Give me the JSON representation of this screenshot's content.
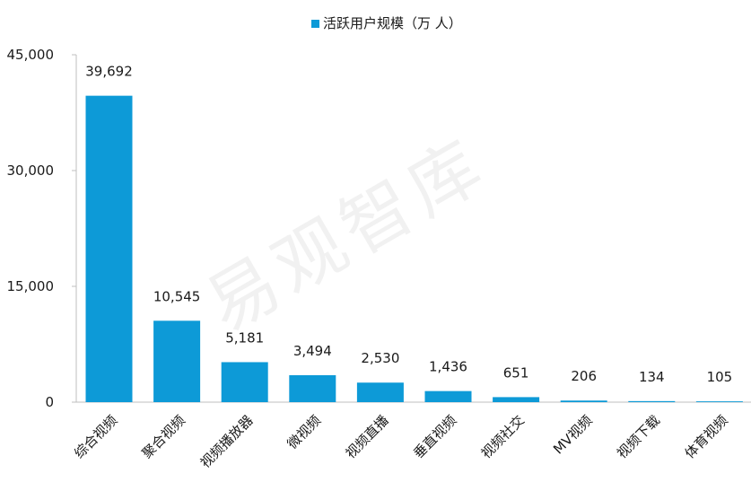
{
  "chart_data": {
    "type": "bar",
    "categories": [
      "综合视频",
      "聚合视频",
      "视频播放器",
      "微视频",
      "视频直播",
      "垂直视频",
      "视频社交",
      "MV视频",
      "视频下载",
      "体育视频"
    ],
    "series": [
      {
        "name": "活跃用户规模（万 人）",
        "values": [
          39692,
          10545,
          5181,
          3494,
          2530,
          1436,
          651,
          206,
          134,
          105
        ],
        "value_labels": [
          "39,692",
          "10,545",
          "5,181",
          "3,494",
          "2,530",
          "1,436",
          "651",
          "206",
          "134",
          "105"
        ],
        "color": "#0d9ad7"
      }
    ],
    "yticks": [
      0,
      15000,
      30000,
      45000
    ],
    "ytick_labels": [
      "0",
      "15,000",
      "30,000",
      "45,000"
    ],
    "ylim": [
      0,
      45000
    ],
    "grid": false,
    "legend_position": "top-center"
  },
  "watermark": {
    "text": "易观智库"
  },
  "colors": {
    "bar": "#0d9ad7",
    "axis": "#bfbfbf",
    "text": "#1a1a1a"
  }
}
